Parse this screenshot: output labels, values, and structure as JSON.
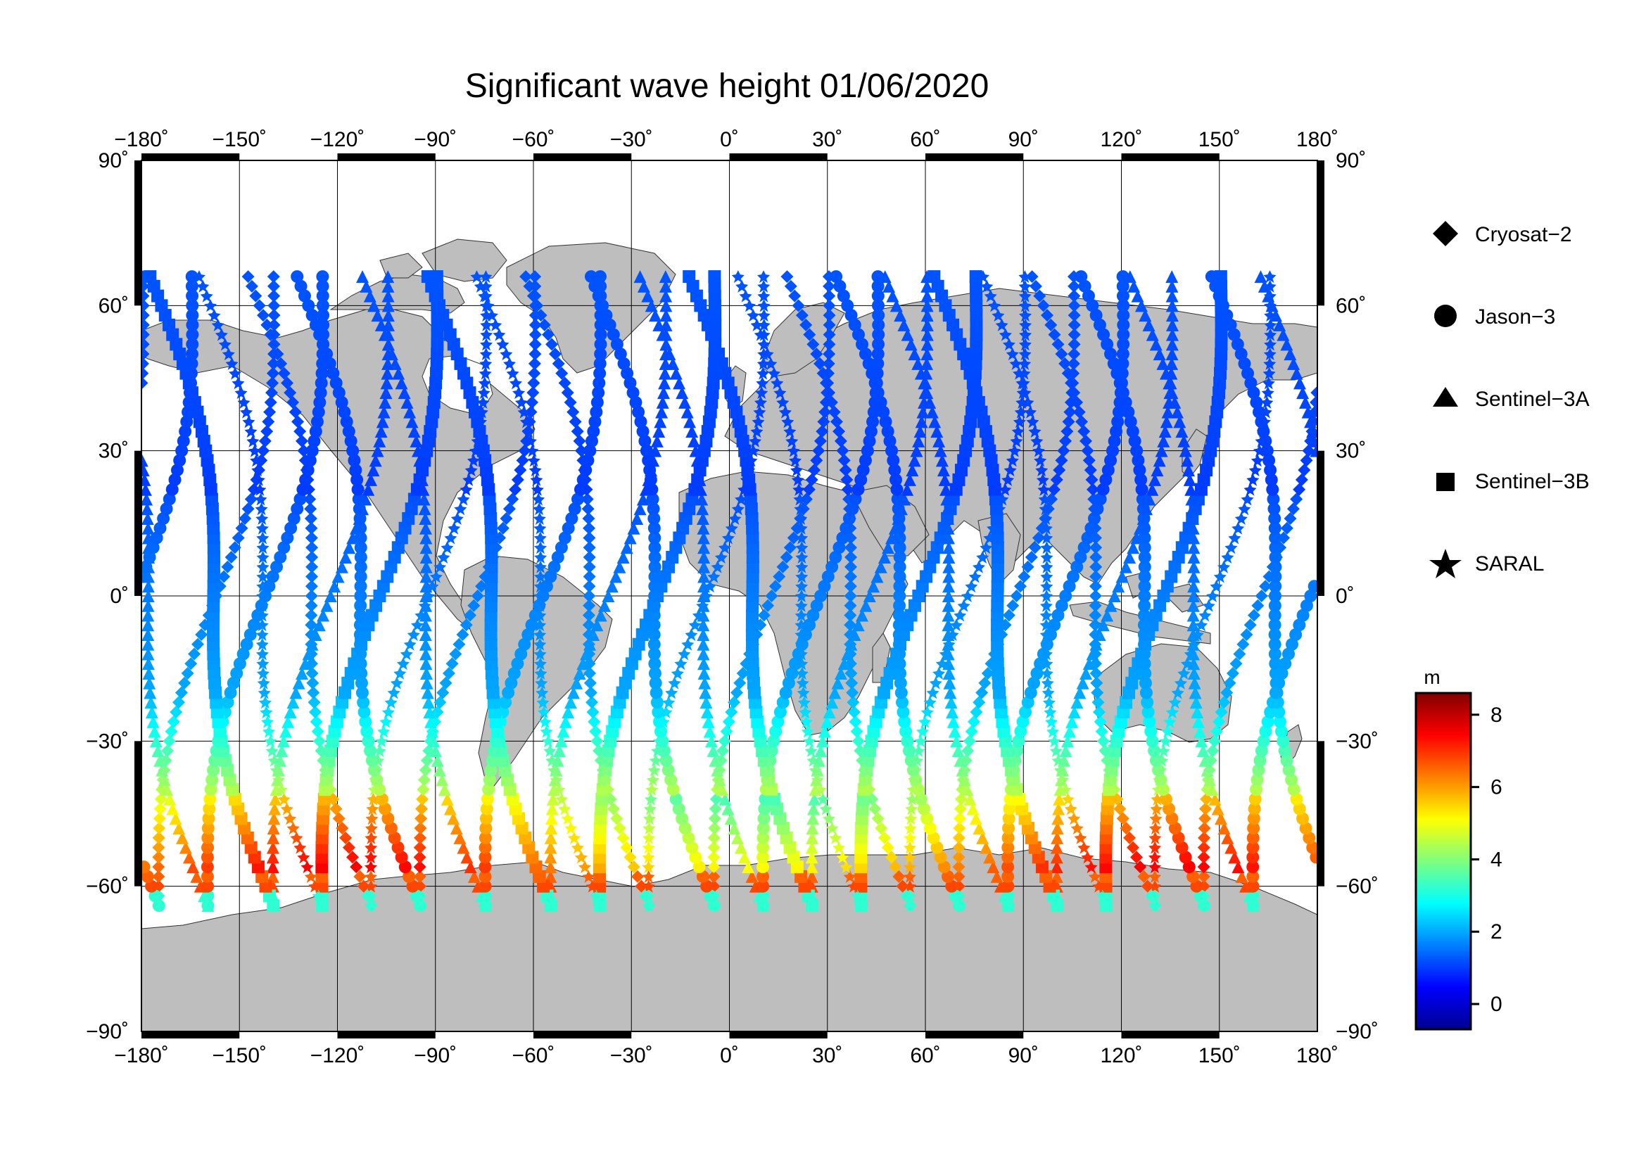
{
  "title": "Significant wave height 01/06/2020",
  "map": {
    "lon_ticks": [
      -180,
      -150,
      -120,
      -90,
      -60,
      -30,
      0,
      30,
      60,
      90,
      120,
      150,
      180
    ],
    "lat_ticks": [
      90,
      60,
      30,
      0,
      -30,
      -60,
      -90
    ],
    "lon_labels": [
      "−180˚",
      "−150˚",
      "−120˚",
      "−90˚",
      "−60˚",
      "−30˚",
      "0˚",
      "30˚",
      "60˚",
      "90˚",
      "120˚",
      "150˚",
      "180˚"
    ],
    "lat_labels": [
      "90˚",
      "60˚",
      "30˚",
      "0˚",
      "−30˚",
      "−60˚",
      "−90˚"
    ],
    "land_color": "#bebebe",
    "ocean_color": "#ffffff",
    "grid": true
  },
  "legend": {
    "items": [
      {
        "label": "Cryosat−2",
        "marker": "diamond"
      },
      {
        "label": "Jason−3",
        "marker": "circle"
      },
      {
        "label": "Sentinel−3A",
        "marker": "triangle"
      },
      {
        "label": "Sentinel−3B",
        "marker": "square"
      },
      {
        "label": "SARAL",
        "marker": "star"
      }
    ]
  },
  "colorbar": {
    "unit": "m",
    "min": -0.7,
    "max": 8.6,
    "ticks": [
      0,
      2,
      4,
      6,
      8
    ],
    "colormap": "jet"
  }
}
